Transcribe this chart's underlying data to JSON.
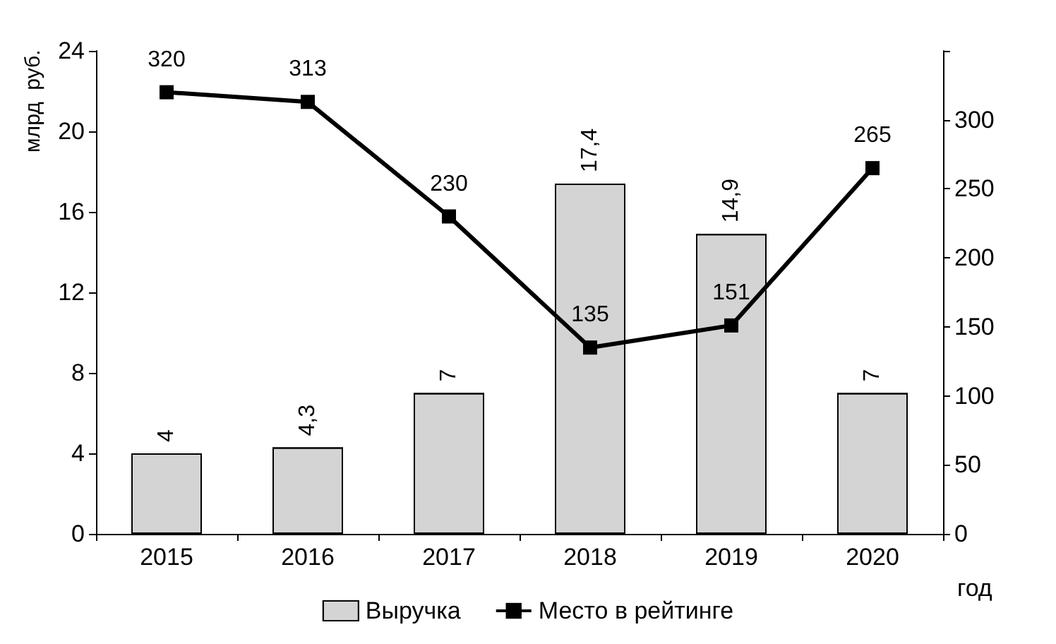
{
  "chart_data": {
    "type": "bar",
    "ylabel": "млрд  руб.",
    "xlabel": "год",
    "categories": [
      "2015",
      "2016",
      "2017",
      "2018",
      "2019",
      "2020"
    ],
    "series": [
      {
        "name": "Выручка",
        "color": "#d4d4d4",
        "values": [
          4,
          4.3,
          7,
          17.4,
          14.9,
          7
        ],
        "value_labels": [
          "4",
          "4,3",
          "7",
          "17,4",
          "14,9",
          "7"
        ]
      },
      {
        "name": "Место в рейтинге",
        "type": "line",
        "axis": "y2",
        "color": "#000000",
        "marker": "square",
        "line_style": "solid",
        "values": [
          320,
          313,
          230,
          135,
          151,
          265
        ],
        "value_labels": [
          "320",
          "313",
          "230",
          "135",
          "151",
          "265"
        ]
      }
    ],
    "ylim": [
      0,
      24
    ],
    "yticks": [
      0,
      4,
      8,
      12,
      16,
      20,
      24
    ],
    "y2lim": [
      0,
      350
    ],
    "y2ticks": [
      0,
      50,
      100,
      150,
      200,
      250,
      300,
      {
        "value": 350,
        "label": null
      }
    ],
    "grid": false,
    "legend": "bottom"
  }
}
